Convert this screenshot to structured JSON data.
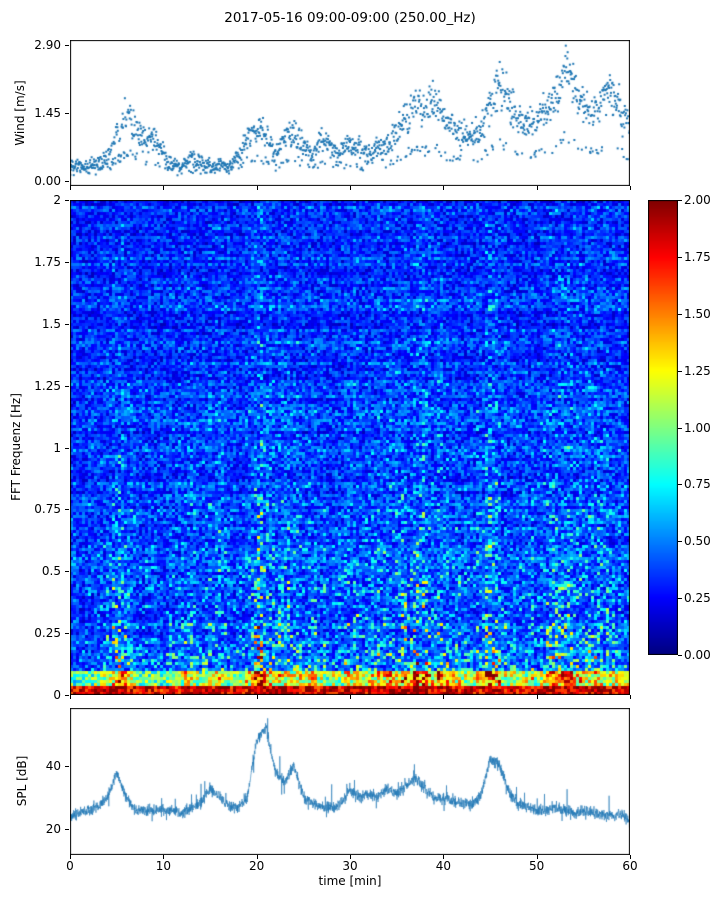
{
  "title": "2017-05-16 09:00-09:00 (250.00_Hz)",
  "colors": {
    "marker": "#1f77b4",
    "line": "#1f77b4",
    "axis": "#000000",
    "background": "#ffffff"
  },
  "xaxis": {
    "label": "time [min]",
    "tick_values": [
      0,
      10,
      20,
      30,
      40,
      50,
      60
    ],
    "tick_labels": [
      "0",
      "10",
      "20",
      "30",
      "40",
      "50",
      "60"
    ]
  },
  "colorbar": {
    "colormap": "jet",
    "vmin": 0,
    "vmax": 2,
    "tick_values": [
      2,
      1.75,
      1.5,
      1.25,
      1,
      0.75,
      0.5,
      0.25,
      0
    ],
    "tick_labels": [
      "2.00",
      "1.75",
      "1.50",
      "1.25",
      "1.00",
      "0.75",
      "0.50",
      "0.25",
      "0.00"
    ]
  },
  "chart_data": [
    {
      "type": "scatter",
      "name": "wind-speed",
      "ylabel": "Wind [m/s]",
      "ylim": [
        0,
        2.9
      ],
      "ytick_values": [
        2.9,
        1.45,
        0
      ],
      "ytick_labels": [
        "2.90",
        "1.45",
        "0.00"
      ],
      "xlim": [
        0,
        60
      ],
      "x_start": 0,
      "x_step": 1,
      "mean_values": [
        0.3,
        0.35,
        0.3,
        0.4,
        0.5,
        1.0,
        1.5,
        1.2,
        0.8,
        0.9,
        0.6,
        0.35,
        0.3,
        0.5,
        0.4,
        0.3,
        0.35,
        0.3,
        0.5,
        0.9,
        1.1,
        1.0,
        0.6,
        0.9,
        1.0,
        0.8,
        0.6,
        0.9,
        0.7,
        0.6,
        0.8,
        0.7,
        0.6,
        0.7,
        0.8,
        1.0,
        1.4,
        1.7,
        1.5,
        1.8,
        1.3,
        1.2,
        1.0,
        0.9,
        1.1,
        1.6,
        2.1,
        1.7,
        1.3,
        1.2,
        1.4,
        1.5,
        1.8,
        2.5,
        2.0,
        1.6,
        1.4,
        1.7,
        1.9,
        1.5,
        1.2
      ],
      "spread": 0.3
    },
    {
      "type": "heatmap",
      "name": "fft-spectrogram",
      "ylabel": "FFT Frequenz [Hz]",
      "ylim": [
        0,
        2
      ],
      "ytick_values": [
        2,
        1.75,
        1.5,
        1.25,
        1,
        0.75,
        0.5,
        0.25,
        0
      ],
      "ytick_labels": [
        "2",
        "1.75",
        "1.5",
        "1.25",
        "1",
        "0.75",
        "0.5",
        "0.25",
        "0"
      ],
      "xlim": [
        0,
        60
      ],
      "vmin": 0,
      "vmax": 2,
      "colormap": "jet",
      "base_level": 0.25,
      "low_freq_band_value": 1.8,
      "column_intensity": [
        0.25,
        0.2,
        0.25,
        0.3,
        0.45,
        0.7,
        0.6,
        0.3,
        0.35,
        0.3,
        0.3,
        0.35,
        0.55,
        0.45,
        0.3,
        0.5,
        0.6,
        0.35,
        0.3,
        0.5,
        0.9,
        0.85,
        0.5,
        0.55,
        0.6,
        0.4,
        0.45,
        0.5,
        0.35,
        0.4,
        0.6,
        0.55,
        0.45,
        0.6,
        0.65,
        0.6,
        0.7,
        0.75,
        0.8,
        0.7,
        0.65,
        0.5,
        0.45,
        0.4,
        0.55,
        0.85,
        0.7,
        0.45,
        0.4,
        0.5,
        0.45,
        0.5,
        0.6,
        0.7,
        0.65,
        0.6,
        0.65,
        0.6,
        0.5,
        0.45,
        0.4
      ]
    },
    {
      "type": "line",
      "name": "spl",
      "ylabel": "SPL [dB]",
      "ylim": [
        12,
        58
      ],
      "ytick_values": [
        40,
        20
      ],
      "ytick_labels": [
        "40",
        "20"
      ],
      "xlim": [
        0,
        60
      ],
      "x_start": 0,
      "x_step": 1,
      "values": [
        24,
        25,
        26,
        27,
        30,
        38,
        30,
        26,
        26,
        26,
        26,
        26,
        25,
        27,
        28,
        33,
        30,
        27,
        27,
        30,
        48,
        52,
        38,
        35,
        40,
        30,
        28,
        27,
        27,
        28,
        32,
        30,
        31,
        30,
        33,
        31,
        34,
        36,
        33,
        30,
        30,
        29,
        28,
        28,
        30,
        42,
        40,
        32,
        28,
        27,
        26,
        26,
        27,
        26,
        25,
        26,
        25,
        25,
        24,
        25,
        22
      ],
      "noise_db": 1.3
    }
  ]
}
